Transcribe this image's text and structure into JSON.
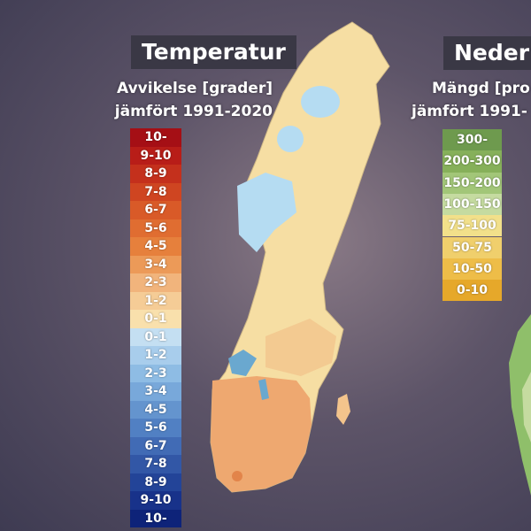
{
  "temperature": {
    "title": "Temperatur",
    "subtitle": [
      "Avvikelse [grader]",
      "jämfört 1991-2020"
    ],
    "legend": [
      {
        "label": "10-",
        "color": "#a50f15"
      },
      {
        "label": "9-10",
        "color": "#b81d18"
      },
      {
        "label": "8-9",
        "color": "#c4301c"
      },
      {
        "label": "7-8",
        "color": "#cf4521"
      },
      {
        "label": "6-7",
        "color": "#d95a28"
      },
      {
        "label": "5-6",
        "color": "#e06d31"
      },
      {
        "label": "4-5",
        "color": "#e6803c"
      },
      {
        "label": "3-4",
        "color": "#ec9a58"
      },
      {
        "label": "2-3",
        "color": "#f1b47c"
      },
      {
        "label": "1-2",
        "color": "#f5cc96"
      },
      {
        "label": "0-1",
        "color": "#f9e0ac"
      },
      {
        "label": "0-1",
        "color": "#c4dff2"
      },
      {
        "label": "1-2",
        "color": "#a8cdec"
      },
      {
        "label": "2-3",
        "color": "#8ebce4"
      },
      {
        "label": "3-4",
        "color": "#78a8da"
      },
      {
        "label": "4-5",
        "color": "#6494ce"
      },
      {
        "label": "5-6",
        "color": "#5180c3"
      },
      {
        "label": "6-7",
        "color": "#416bb5"
      },
      {
        "label": "7-8",
        "color": "#3257a6"
      },
      {
        "label": "8-9",
        "color": "#234498"
      },
      {
        "label": "9-10",
        "color": "#18328a"
      },
      {
        "label": "10-",
        "color": "#0e2379"
      }
    ]
  },
  "precipitation": {
    "title": "Nederb",
    "subtitle": [
      "Mängd [pro",
      "jämfört 1991-"
    ],
    "legend": [
      {
        "label": "300-",
        "color": "#6e9a4e"
      },
      {
        "label": "200-300",
        "color": "#86b05a"
      },
      {
        "label": "150-200",
        "color": "#a2c678"
      },
      {
        "label": "100-150",
        "color": "#c5dba0"
      },
      {
        "label": "75-100",
        "color": "#f2e08a"
      },
      {
        "label": "50-75",
        "color": "#f0cf6c"
      },
      {
        "label": "10-50",
        "color": "#eebd48"
      },
      {
        "label": "0-10",
        "color": "#e6a82a"
      }
    ]
  }
}
